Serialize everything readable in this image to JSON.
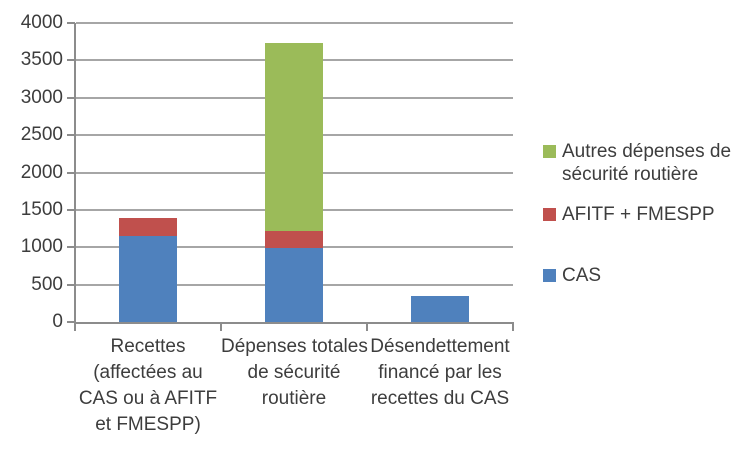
{
  "chart_data": {
    "type": "bar",
    "stacked": true,
    "title": "",
    "xlabel": "",
    "ylabel": "",
    "ylim": [
      0,
      4000
    ],
    "ytick_step": 500,
    "yticks": [
      0,
      500,
      1000,
      1500,
      2000,
      2500,
      3000,
      3500,
      4000
    ],
    "grid": true,
    "legend_position": "right",
    "categories": [
      "Recettes (affectées au CAS ou à AFITF et FMESPP)",
      "Dépenses totales de sécurité routière",
      "Désendettement financé par les recettes du CAS"
    ],
    "categories_lines": [
      [
        "Recettes",
        "(affectées au",
        "CAS ou à AFITF",
        "et FMESPP)"
      ],
      [
        "Dépenses totales",
        "de sécurité",
        "routière"
      ],
      [
        "Désendettement",
        "financé par les",
        "recettes du CAS"
      ]
    ],
    "series": [
      {
        "name": "CAS",
        "color": "#4F81BD",
        "values": [
          1150,
          985,
          350
        ]
      },
      {
        "name": "AFITF + FMESPP",
        "color": "#C0504D",
        "values": [
          245,
          230,
          0
        ]
      },
      {
        "name": "Autres dépenses de sécurité routière",
        "color": "#9BBB59",
        "values": [
          0,
          2525,
          0
        ]
      }
    ],
    "category_totals": [
      1395,
      3740,
      350
    ]
  },
  "legend": {
    "items": [
      {
        "label": "Autres dépenses de sécurité routière",
        "color": "#9BBB59"
      },
      {
        "label": "AFITF + FMESPP",
        "color": "#C0504D"
      },
      {
        "label": "CAS",
        "color": "#4F81BD"
      }
    ]
  },
  "colors": {
    "background": "#FFFFFF",
    "axis": "#8C8C8C",
    "gridline": "#A6A6A6",
    "text": "#3D3D3D"
  }
}
